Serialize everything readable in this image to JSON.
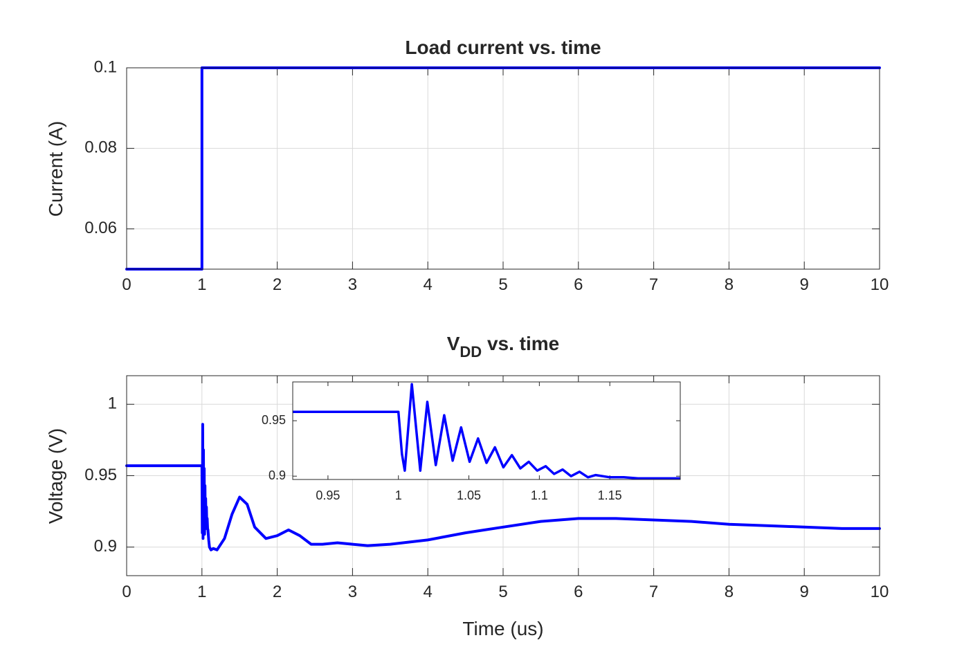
{
  "chart_data": [
    {
      "type": "line",
      "title": "Load current vs. time",
      "xlabel": "",
      "ylabel": "Current (A)",
      "xlim": [
        0,
        10
      ],
      "ylim": [
        0.05,
        0.1
      ],
      "xticks": [
        0,
        1,
        2,
        3,
        4,
        5,
        6,
        7,
        8,
        9,
        10
      ],
      "xtick_labels": [
        "0",
        "1",
        "2",
        "3",
        "4",
        "5",
        "6",
        "7",
        "8",
        "9",
        "10"
      ],
      "yticks": [
        0.06,
        0.08,
        0.1
      ],
      "ytick_labels": [
        "0.06",
        "0.08",
        "0.1"
      ],
      "grid": true,
      "line_color": "#0000ff",
      "series": [
        {
          "x": [
            0,
            1,
            1,
            10
          ],
          "y": [
            0.05,
            0.05,
            0.1,
            0.1
          ]
        }
      ]
    },
    {
      "type": "line",
      "title": "V",
      "title_subscript": "DD",
      "title_suffix": " vs. time",
      "xlabel": "Time (us)",
      "ylabel": "Voltage (V)",
      "xlim": [
        0,
        10
      ],
      "ylim": [
        0.88,
        1.02
      ],
      "xticks": [
        0,
        1,
        2,
        3,
        4,
        5,
        6,
        7,
        8,
        9,
        10
      ],
      "xtick_labels": [
        "0",
        "1",
        "2",
        "3",
        "4",
        "5",
        "6",
        "7",
        "8",
        "9",
        "10"
      ],
      "yticks": [
        0.9,
        0.95,
        1.0
      ],
      "ytick_labels": [
        "0.9",
        "0.95",
        "1"
      ],
      "grid": true,
      "line_color": "#0000ff",
      "series": [
        {
          "x": [
            0,
            1.0,
            1.005,
            1.01,
            1.015,
            1.02,
            1.025,
            1.03,
            1.035,
            1.04,
            1.045,
            1.05,
            1.055,
            1.06,
            1.065,
            1.07,
            1.075,
            1.08,
            1.09,
            1.1,
            1.12,
            1.15,
            1.2,
            1.3,
            1.4,
            1.5,
            1.6,
            1.7,
            1.85,
            2.0,
            2.15,
            2.3,
            2.45,
            2.6,
            2.8,
            3.0,
            3.2,
            3.5,
            4.0,
            4.5,
            5.0,
            5.5,
            6.0,
            6.5,
            7.0,
            7.5,
            8.0,
            8.5,
            9.0,
            9.5,
            10.0
          ],
          "y": [
            0.957,
            0.957,
            0.91,
            0.986,
            0.906,
            0.968,
            0.913,
            0.955,
            0.909,
            0.943,
            0.915,
            0.934,
            0.913,
            0.928,
            0.914,
            0.92,
            0.913,
            0.912,
            0.905,
            0.9,
            0.898,
            0.899,
            0.898,
            0.906,
            0.923,
            0.935,
            0.93,
            0.914,
            0.906,
            0.908,
            0.912,
            0.908,
            0.902,
            0.902,
            0.903,
            0.902,
            0.901,
            0.902,
            0.905,
            0.91,
            0.914,
            0.918,
            0.92,
            0.92,
            0.919,
            0.918,
            0.916,
            0.915,
            0.914,
            0.913,
            0.913
          ]
        }
      ]
    },
    {
      "type": "line",
      "title": "",
      "xlabel": "",
      "ylabel": "",
      "xlim": [
        0.925,
        1.2
      ],
      "ylim": [
        0.897,
        0.985
      ],
      "xticks": [
        0.95,
        1.0,
        1.05,
        1.1,
        1.15
      ],
      "xtick_labels": [
        "0.95",
        "1",
        "1.05",
        "1.1",
        "1.15"
      ],
      "yticks": [
        0.9,
        0.95
      ],
      "ytick_labels": [
        "0.9",
        "0.95"
      ],
      "grid": false,
      "line_color": "#0000ff",
      "series": [
        {
          "x": [
            0.925,
            1.0,
            1.0025,
            1.0045,
            1.0095,
            1.0155,
            1.0205,
            1.0265,
            1.0325,
            1.0385,
            1.0445,
            1.0505,
            1.0565,
            1.0625,
            1.0685,
            1.0745,
            1.0805,
            1.0865,
            1.0925,
            1.0985,
            1.1045,
            1.1105,
            1.1165,
            1.1225,
            1.1285,
            1.1345,
            1.14,
            1.15,
            1.16,
            1.17,
            1.2
          ],
          "y": [
            0.958,
            0.958,
            0.92,
            0.905,
            0.983,
            0.905,
            0.967,
            0.91,
            0.955,
            0.914,
            0.944,
            0.913,
            0.934,
            0.912,
            0.926,
            0.908,
            0.919,
            0.907,
            0.913,
            0.905,
            0.909,
            0.902,
            0.906,
            0.9,
            0.904,
            0.899,
            0.901,
            0.899,
            0.899,
            0.898,
            0.898
          ]
        }
      ]
    }
  ]
}
